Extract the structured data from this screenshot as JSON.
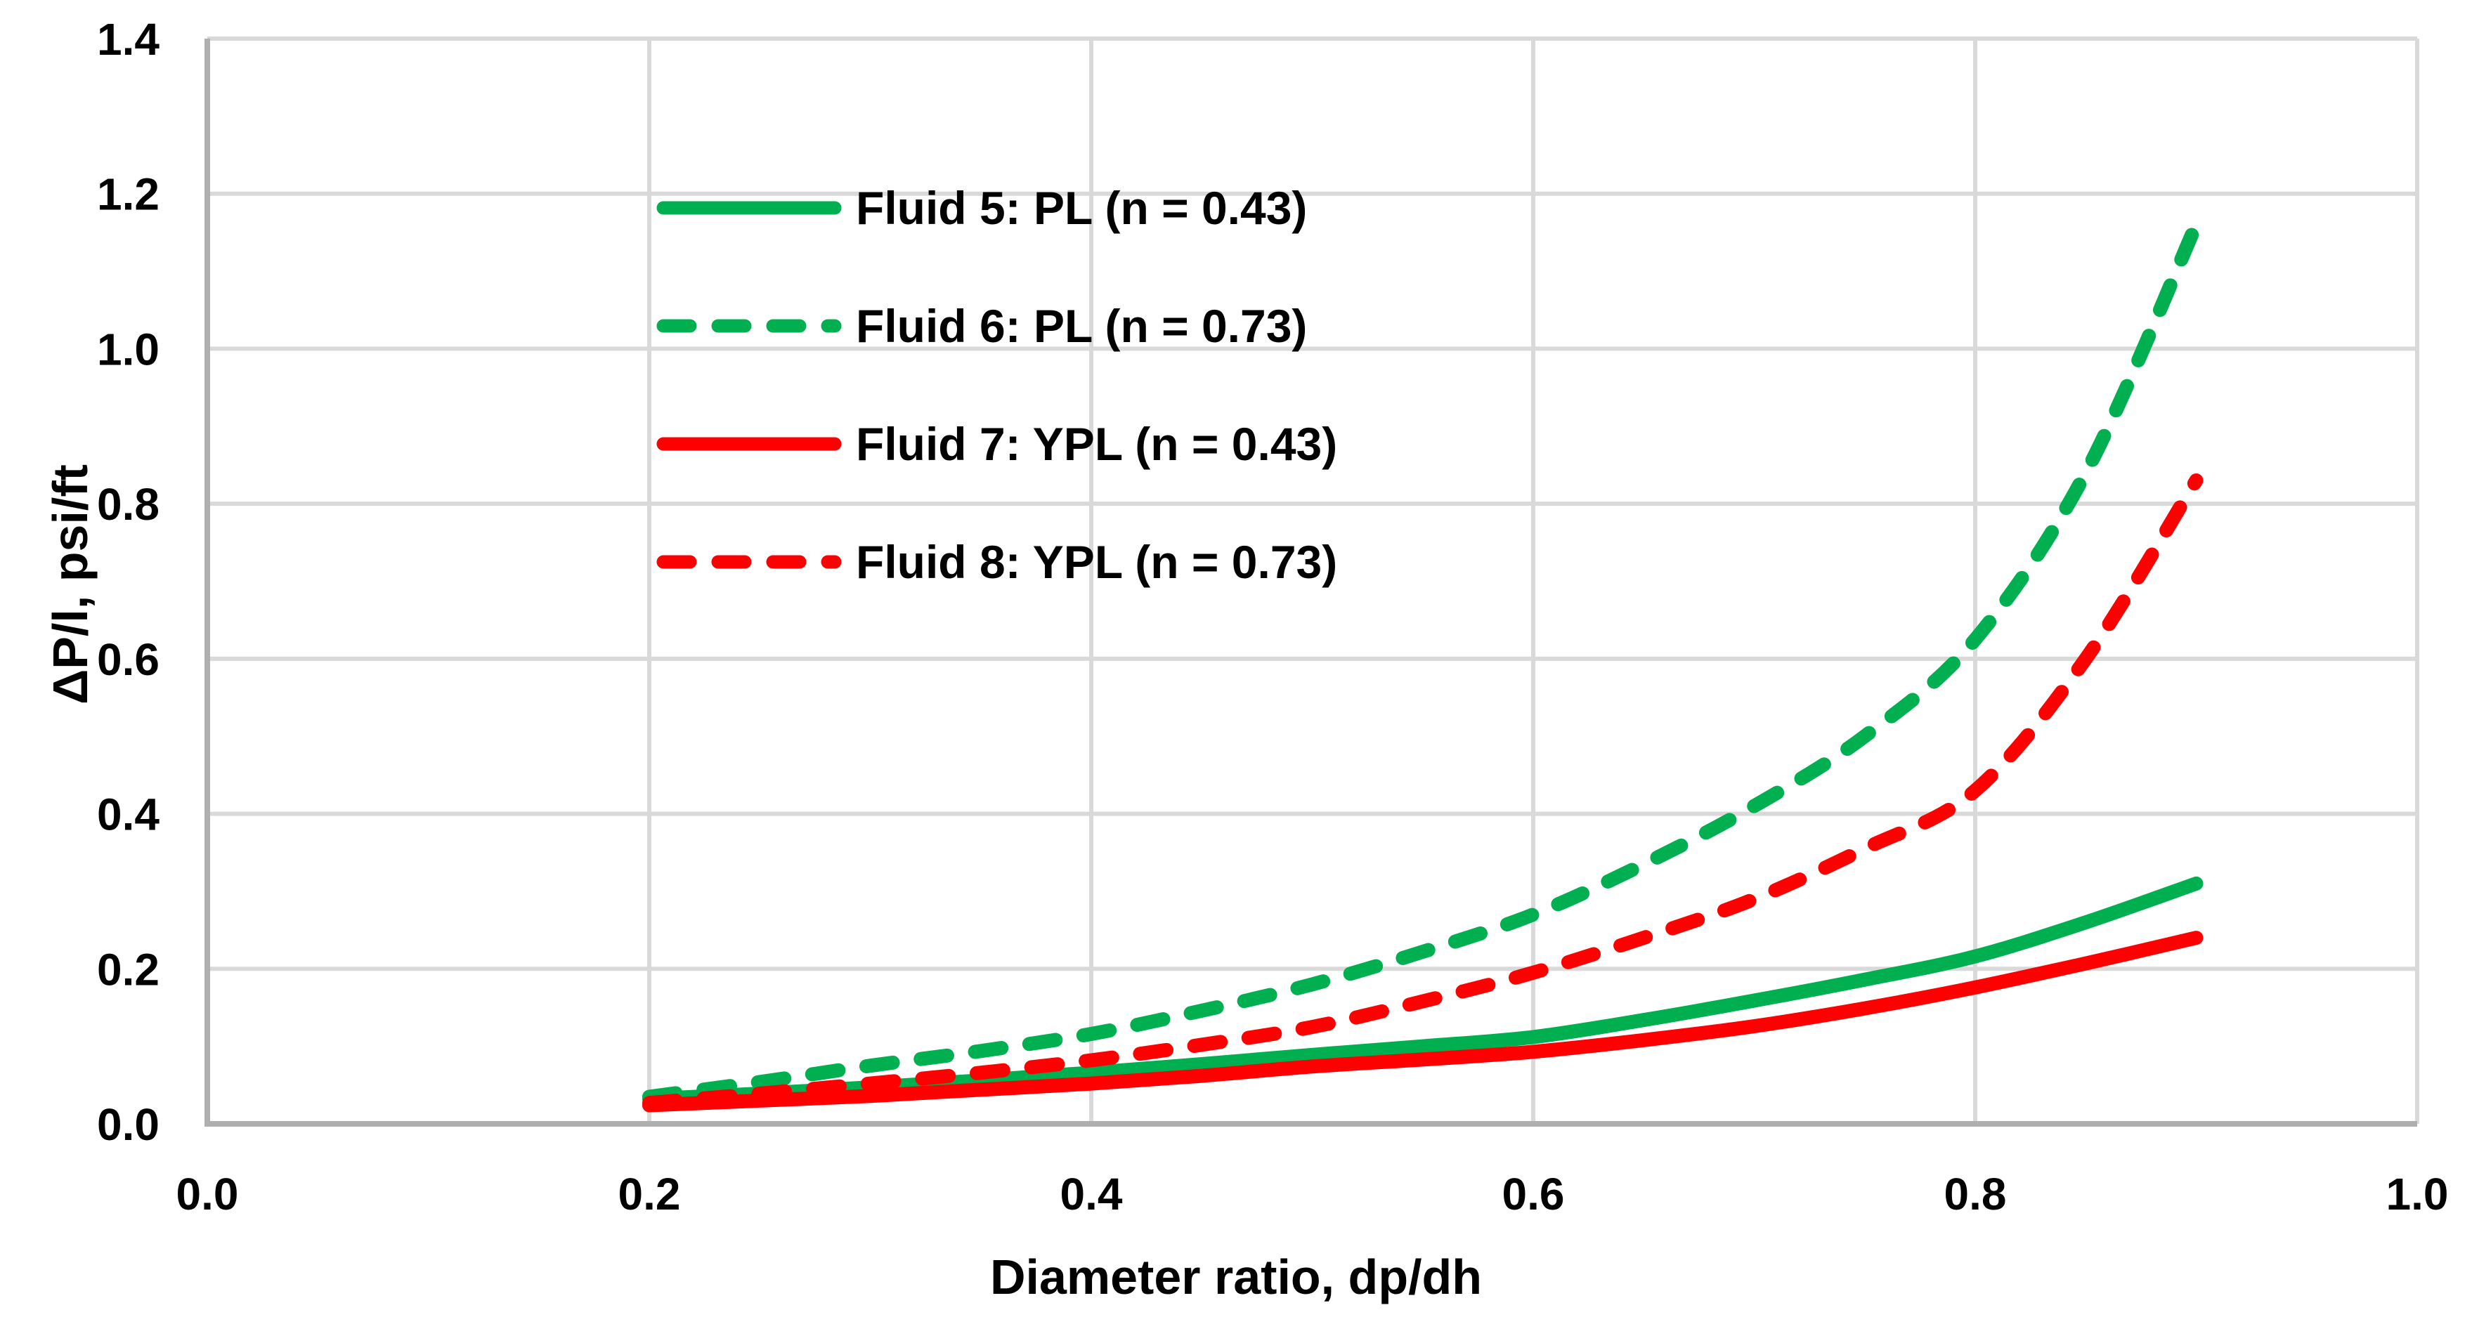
{
  "chart_data": {
    "type": "line",
    "title": "",
    "xlabel": "Diameter ratio, dp/dh",
    "ylabel": "ΔP/l, psi/ft",
    "xlim": [
      0.0,
      1.0
    ],
    "ylim": [
      0.0,
      1.4
    ],
    "x_tick_labels": [
      "0.0",
      "0.2",
      "0.4",
      "0.6",
      "0.8",
      "1.0"
    ],
    "x_tick_values": [
      0.0,
      0.2,
      0.4,
      0.6,
      0.8,
      1.0
    ],
    "y_tick_labels": [
      "0.0",
      "0.2",
      "0.4",
      "0.6",
      "0.8",
      "1.0",
      "1.2",
      "1.4"
    ],
    "y_tick_values": [
      0.0,
      0.2,
      0.4,
      0.6,
      0.8,
      1.0,
      1.2,
      1.4
    ],
    "grid": true,
    "legend_position": "inside-top-left",
    "x": [
      0.2,
      0.25,
      0.3,
      0.35,
      0.4,
      0.45,
      0.5,
      0.55,
      0.6,
      0.65,
      0.7,
      0.75,
      0.8,
      0.85,
      0.9
    ],
    "series": [
      {
        "name": "Fluid 5: PL (n = 0.43)",
        "color": "#00B050",
        "style": "solid",
        "values": [
          0.032,
          0.039,
          0.047,
          0.056,
          0.066,
          0.077,
          0.089,
          0.1,
          0.112,
          0.134,
          0.159,
          0.186,
          0.216,
          0.26,
          0.31
        ]
      },
      {
        "name": "Fluid 6: PL (n = 0.73)",
        "color": "#00B050",
        "style": "dashed",
        "values": [
          0.035,
          0.054,
          0.075,
          0.094,
          0.116,
          0.146,
          0.18,
          0.222,
          0.27,
          0.335,
          0.41,
          0.5,
          0.625,
          0.84,
          1.16
        ]
      },
      {
        "name": "Fluid 7: YPL (n = 0.43)",
        "color": "#FF0000",
        "style": "solid",
        "values": [
          0.024,
          0.03,
          0.036,
          0.044,
          0.052,
          0.062,
          0.074,
          0.083,
          0.093,
          0.108,
          0.126,
          0.149,
          0.176,
          0.207,
          0.24
        ]
      },
      {
        "name": "Fluid 8: YPL (n = 0.73)",
        "color": "#FF0000",
        "style": "dashed",
        "values": [
          0.027,
          0.039,
          0.052,
          0.066,
          0.082,
          0.102,
          0.125,
          0.158,
          0.195,
          0.24,
          0.29,
          0.355,
          0.43,
          0.6,
          0.83
        ]
      }
    ],
    "colors": {
      "grid": "#D9D9D9",
      "axis": "#AFAFAF",
      "text": "#000000",
      "background": "#FFFFFF"
    }
  }
}
